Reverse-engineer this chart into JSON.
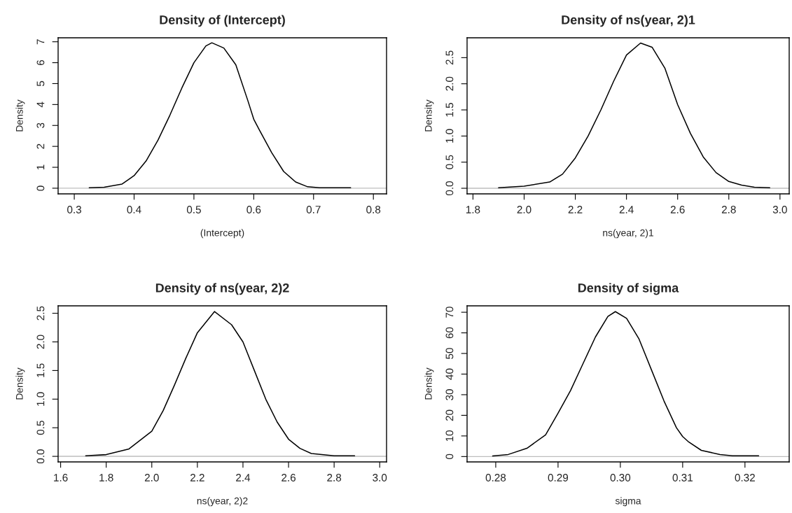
{
  "chart_data": [
    {
      "type": "line",
      "title": "Density of (Intercept)",
      "xlabel": "(Intercept)",
      "ylabel": "Density",
      "xlim": [
        0.273,
        0.822
      ],
      "ylim": [
        -0.27,
        7.19
      ],
      "xticks": [
        0.3,
        0.4,
        0.5,
        0.6,
        0.7,
        0.8
      ],
      "yticks": [
        0,
        1,
        2,
        3,
        4,
        5,
        6,
        7
      ],
      "grid": false,
      "legend": false,
      "marker": "none",
      "line_style": "solid",
      "ref_lines": [
        {
          "axis": "y",
          "value": 0,
          "color": "#bebebe"
        }
      ],
      "series": [
        {
          "color": "#000000",
          "x": [
            0.325,
            0.35,
            0.38,
            0.4,
            0.42,
            0.44,
            0.46,
            0.48,
            0.5,
            0.52,
            0.53,
            0.55,
            0.57,
            0.59,
            0.6,
            0.61,
            0.63,
            0.65,
            0.67,
            0.69,
            0.71,
            0.762
          ],
          "values": [
            0.02,
            0.05,
            0.2,
            0.6,
            1.3,
            2.3,
            3.5,
            4.8,
            6.0,
            6.8,
            6.95,
            6.7,
            5.9,
            4.2,
            3.3,
            2.75,
            1.7,
            0.8,
            0.3,
            0.07,
            0.02,
            0.02
          ]
        }
      ]
    },
    {
      "type": "line",
      "title": "Density of ns(year, 2)1",
      "xlabel": "ns(year, 2)1",
      "ylabel": "Density",
      "xlim": [
        1.777,
        3.036
      ],
      "ylim": [
        -0.107,
        2.88
      ],
      "xticks": [
        {
          "value": 1.8,
          "label": "1.8"
        },
        {
          "value": 2.0,
          "label": "2.0"
        },
        {
          "value": 2.2,
          "label": "2.2"
        },
        {
          "value": 2.4,
          "label": "2.4"
        },
        {
          "value": 2.6,
          "label": "2.6"
        },
        {
          "value": 2.8,
          "label": "2.8"
        },
        {
          "value": 3.0,
          "label": "3.0"
        }
      ],
      "yticks": [
        {
          "value": 0,
          "label": "0.0"
        },
        0.5,
        {
          "value": 1,
          "label": "1.0"
        },
        1.5,
        {
          "value": 2,
          "label": "2.0"
        },
        2.5
      ],
      "grid": false,
      "legend": false,
      "marker": "none",
      "line_style": "solid",
      "ref_lines": [
        {
          "axis": "y",
          "value": 0,
          "color": "#bebebe"
        }
      ],
      "series": [
        {
          "color": "#000000",
          "x": [
            1.9,
            2.0,
            2.1,
            2.15,
            2.2,
            2.25,
            2.3,
            2.35,
            2.4,
            2.455,
            2.5,
            2.55,
            2.6,
            2.65,
            2.7,
            2.75,
            2.8,
            2.85,
            2.9,
            2.96
          ],
          "values": [
            0.01,
            0.04,
            0.12,
            0.27,
            0.58,
            1.0,
            1.5,
            2.05,
            2.55,
            2.78,
            2.7,
            2.3,
            1.6,
            1.05,
            0.6,
            0.3,
            0.13,
            0.06,
            0.02,
            0.01
          ]
        }
      ]
    },
    {
      "type": "line",
      "title": "Density of ns(year, 2)2",
      "xlabel": "ns(year, 2)2",
      "ylabel": "Density",
      "xlim": [
        1.589,
        3.03
      ],
      "ylim": [
        -0.097,
        2.63
      ],
      "xticks": [
        1.6,
        1.8,
        {
          "value": 2.0,
          "label": "2.0"
        },
        2.2,
        2.4,
        2.6,
        2.8,
        {
          "value": 3.0,
          "label": "3.0"
        }
      ],
      "yticks": [
        {
          "value": 0,
          "label": "0.0"
        },
        0.5,
        {
          "value": 1,
          "label": "1.0"
        },
        1.5,
        {
          "value": 2,
          "label": "2.0"
        },
        2.5
      ],
      "grid": false,
      "legend": false,
      "marker": "none",
      "line_style": "solid",
      "ref_lines": [
        {
          "axis": "y",
          "value": 0,
          "color": "#bebebe"
        }
      ],
      "series": [
        {
          "color": "#000000",
          "x": [
            1.71,
            1.8,
            1.9,
            2.0,
            2.05,
            2.1,
            2.15,
            2.2,
            2.275,
            2.35,
            2.4,
            2.45,
            2.5,
            2.55,
            2.6,
            2.65,
            2.7,
            2.8,
            2.89
          ],
          "values": [
            0.01,
            0.03,
            0.13,
            0.44,
            0.8,
            1.25,
            1.72,
            2.16,
            2.53,
            2.3,
            2.0,
            1.5,
            1.0,
            0.6,
            0.3,
            0.14,
            0.05,
            0.01,
            0.01
          ]
        }
      ]
    },
    {
      "type": "line",
      "title": "Density of sigma",
      "xlabel": "sigma",
      "ylabel": "Density",
      "xlim": [
        0.2754,
        0.3271
      ],
      "ylim": [
        -2.6,
        73.1
      ],
      "xticks": [
        0.28,
        0.29,
        {
          "value": 0.3,
          "label": "0.30"
        },
        0.31,
        0.32
      ],
      "yticks": [
        0,
        10,
        20,
        30,
        40,
        50,
        60,
        70
      ],
      "grid": false,
      "legend": false,
      "marker": "none",
      "line_style": "solid",
      "ref_lines": [
        {
          "axis": "y",
          "value": 0,
          "color": "#bebebe"
        }
      ],
      "series": [
        {
          "color": "#000000",
          "x": [
            0.2795,
            0.282,
            0.285,
            0.288,
            0.29,
            0.292,
            0.294,
            0.296,
            0.298,
            0.2992,
            0.301,
            0.303,
            0.305,
            0.307,
            0.309,
            0.31,
            0.311,
            0.313,
            0.316,
            0.318,
            0.3222
          ],
          "values": [
            0.3,
            1,
            4,
            10.5,
            21,
            32,
            45,
            58,
            68,
            70.3,
            67,
            57,
            42,
            27,
            14,
            9.7,
            7,
            3,
            1,
            0.4,
            0.4
          ]
        }
      ]
    }
  ]
}
